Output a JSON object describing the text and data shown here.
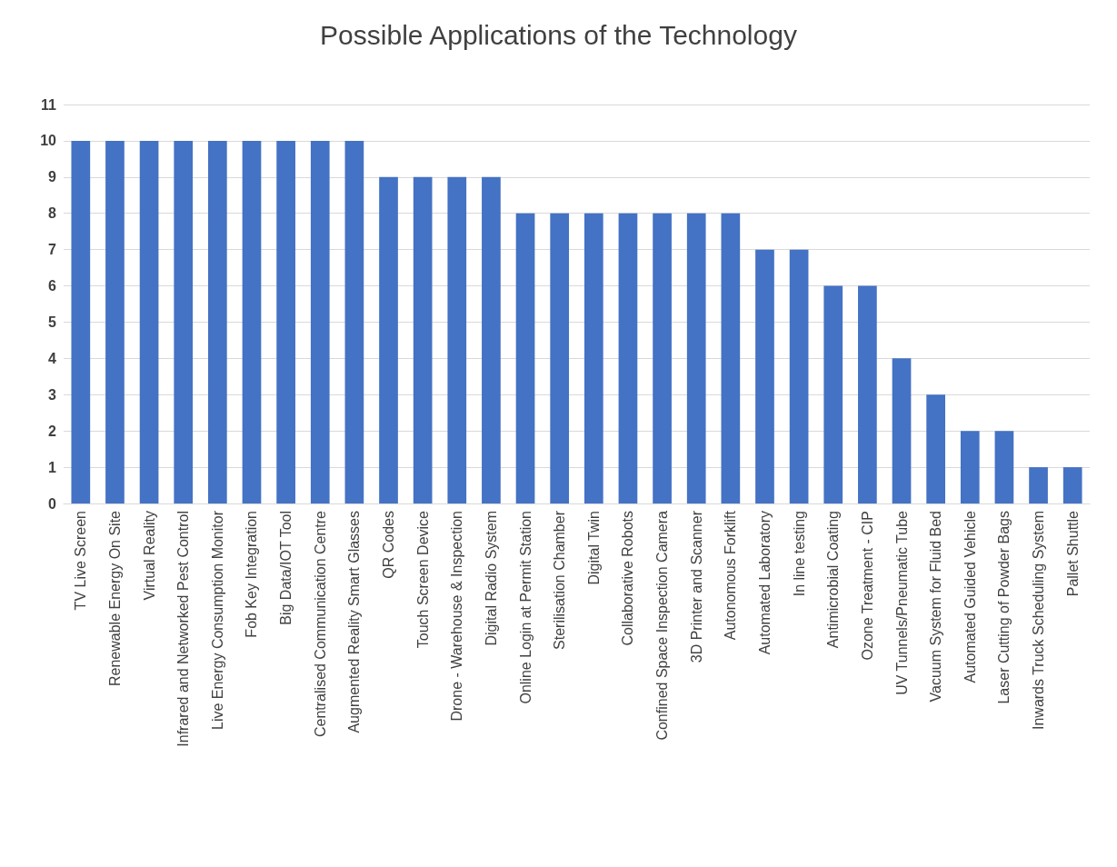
{
  "chart_data": {
    "type": "bar",
    "title": "Possible Applications of the Technology",
    "categories": [
      "TV Live Screen",
      "Renewable Energy On Site",
      "Virtual Reality",
      "Infrared and Networked Pest Control",
      "Live Energy Consumption Monitor",
      "Fob Key Integration",
      "Big Data/IOT Tool",
      "Centralised Communication Centre",
      "Augmented Reality Smart Glasses",
      "QR Codes",
      "Touch Screen Device",
      "Drone - Warehouse & Inspection",
      "Digital Radio System",
      "Online Login at Permit Station",
      "Sterilisation Chamber",
      "Digital Twin",
      "Collaborative Robots",
      "Confined Space Inspection Camera",
      "3D Printer and Scanner",
      "Autonomous Forklift",
      "Automated Laboratory",
      "In line testing",
      "Antimicrobial Coating",
      "Ozone Treatment - CIP",
      "UV Tunnels/Pneumatic Tube",
      "Vacuum System for Fluid Bed",
      "Automated Guided Vehicle",
      "Laser Cutting of Powder Bags",
      "Inwards Truck Scheduling System",
      "Pallet Shuttle"
    ],
    "values": [
      10,
      10,
      10,
      10,
      10,
      10,
      10,
      10,
      10,
      9,
      9,
      9,
      9,
      8,
      8,
      8,
      8,
      8,
      8,
      8,
      7,
      7,
      6,
      6,
      4,
      3,
      2,
      2,
      1,
      1
    ],
    "color": "#4472c4",
    "ylim": [
      0,
      11
    ],
    "yticks": [
      0,
      1,
      2,
      3,
      4,
      5,
      6,
      7,
      8,
      9,
      10,
      11
    ],
    "grid": "y"
  }
}
